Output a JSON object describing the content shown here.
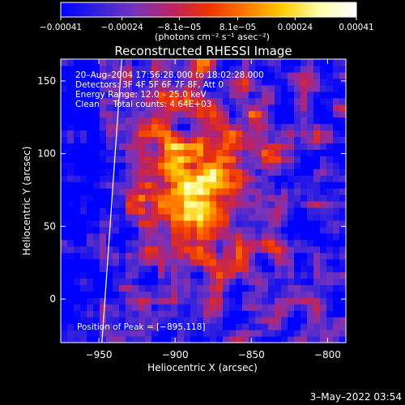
{
  "chart_data": {
    "type": "heatmap",
    "title": "Reconstructed RHESSI Image",
    "xlabel": "Heliocentric X (arcsec)",
    "ylabel": "Heliocentric Y (arcsec)",
    "xlim": [
      -975,
      -788
    ],
    "ylim": [
      -30,
      165
    ],
    "x_ticks": [
      -950,
      -900,
      -850,
      -800
    ],
    "x_tick_labels": [
      "−950",
      "−900",
      "−850",
      "−800"
    ],
    "y_ticks": [
      0,
      50,
      100,
      150
    ],
    "y_tick_labels": [
      "0",
      "50",
      "100",
      "150"
    ],
    "colorbar": {
      "range": [
        -0.00041,
        0.00041
      ],
      "ticks": [
        -0.00041,
        -0.00024,
        -8.1e-05,
        8.1e-05,
        0.00024,
        0.00041
      ],
      "tick_labels": [
        "−0.00041",
        "−0.00024",
        "−8.1e−05",
        "8.1e−05",
        "0.00024",
        "0.00041"
      ],
      "units": "(photons cm⁻² s⁻¹ asec⁻²)",
      "colormap": [
        "#0000ff",
        "#3322dd",
        "#7733bb",
        "#bb2266",
        "#ee3300",
        "#ff7700",
        "#ffcc00",
        "#ffffaa",
        "#ffffff"
      ]
    },
    "annotations": [
      "20–Aug–2004 17:56:28.000 to 18:02:28.000",
      "Detectors: 3F 4F 5F 6F 7F 8F, Att 0",
      "Energy Range: 12.0 – 25.0 keV",
      "Clean     Total counts: 4.64E+03"
    ],
    "peak_label": "Position of Peak = [−895,118]",
    "peak": [
      -895,
      118
    ],
    "limb_line": [
      [
        -948,
        -30
      ],
      [
        -935,
        165
      ]
    ],
    "grid": false
  },
  "footer_timestamp": "3–May–2022 03:54"
}
